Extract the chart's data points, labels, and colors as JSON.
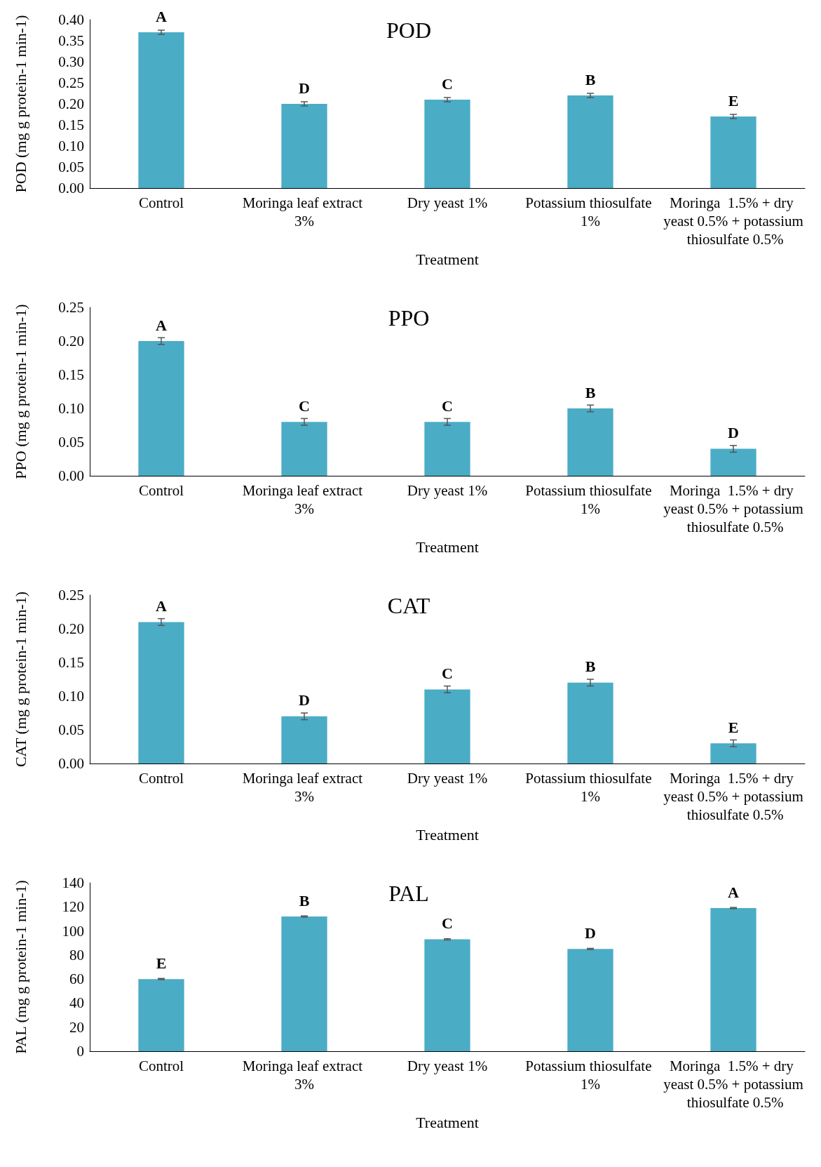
{
  "chart_data": [
    {
      "type": "bar",
      "title": "POD",
      "xlabel": "Treatment",
      "ylabel": "POD (mg g protein-1 min-1)",
      "categories": [
        "Control",
        "Moringa leaf extract 3%",
        "Dry yeast 1%",
        "Potassium thiosulfate 1%",
        "Moringa  1.5% + dry yeast 0.5% + potassium thiosulfate 0.5%"
      ],
      "values": [
        0.37,
        0.2,
        0.21,
        0.22,
        0.17
      ],
      "errors": [
        0.005,
        0.005,
        0.005,
        0.005,
        0.005
      ],
      "value_labels": [
        "A",
        "D",
        "C",
        "B",
        "E"
      ],
      "color": "#4bacc6",
      "ylim": [
        0,
        0.4
      ],
      "yticks": [
        {
          "value": 0,
          "label": "0.00"
        },
        {
          "value": 0.05,
          "label": "0.05"
        },
        {
          "value": 0.1,
          "label": "0.10"
        },
        {
          "value": 0.15,
          "label": "0.15"
        },
        {
          "value": 0.2,
          "label": "0.20"
        },
        {
          "value": 0.25,
          "label": "0.25"
        },
        {
          "value": 0.3,
          "label": "0.30"
        },
        {
          "value": 0.35,
          "label": "0.35"
        },
        {
          "value": 0.4,
          "label": "0.40"
        }
      ],
      "grid": false
    },
    {
      "type": "bar",
      "title": "PPO",
      "xlabel": "Treatment",
      "ylabel": "PPO (mg g protein-1 min-1)",
      "categories": [
        "Control",
        "Moringa leaf extract 3%",
        "Dry yeast 1%",
        "Potassium thiosulfate 1%",
        "Moringa  1.5% + dry yeast 0.5% + potassium thiosulfate 0.5%"
      ],
      "values": [
        0.2,
        0.08,
        0.08,
        0.1,
        0.04
      ],
      "errors": [
        0.005,
        0.005,
        0.005,
        0.005,
        0.005
      ],
      "value_labels": [
        "A",
        "C",
        "C",
        "B",
        "D"
      ],
      "color": "#4bacc6",
      "ylim": [
        0,
        0.25
      ],
      "yticks": [
        {
          "value": 0,
          "label": "0.00"
        },
        {
          "value": 0.05,
          "label": "0.05"
        },
        {
          "value": 0.1,
          "label": "0.10"
        },
        {
          "value": 0.15,
          "label": "0.15"
        },
        {
          "value": 0.2,
          "label": "0.20"
        },
        {
          "value": 0.25,
          "label": "0.25"
        }
      ],
      "grid": false
    },
    {
      "type": "bar",
      "title": "CAT",
      "xlabel": "Treatment",
      "ylabel": "CAT (mg g protein-1 min-1)",
      "categories": [
        "Control",
        "Moringa leaf extract 3%",
        "Dry yeast 1%",
        "Potassium thiosulfate 1%",
        "Moringa  1.5% + dry yeast 0.5% + potassium thiosulfate 0.5%"
      ],
      "values": [
        0.21,
        0.07,
        0.11,
        0.12,
        0.03
      ],
      "errors": [
        0.005,
        0.005,
        0.005,
        0.005,
        0.005
      ],
      "value_labels": [
        "A",
        "D",
        "C",
        "B",
        "E"
      ],
      "color": "#4bacc6",
      "ylim": [
        0,
        0.25
      ],
      "yticks": [
        {
          "value": 0,
          "label": "0.00"
        },
        {
          "value": 0.05,
          "label": "0.05"
        },
        {
          "value": 0.1,
          "label": "0.10"
        },
        {
          "value": 0.15,
          "label": "0.15"
        },
        {
          "value": 0.2,
          "label": "0.20"
        },
        {
          "value": 0.25,
          "label": "0.25"
        }
      ],
      "grid": false
    },
    {
      "type": "bar",
      "title": "PAL",
      "xlabel": "Treatment",
      "ylabel": "PAL (mg g protein-1 min-1)",
      "categories": [
        "Control",
        "Moringa leaf extract 3%",
        "Dry yeast 1%",
        "Potassium thiosulfate 1%",
        "Moringa  1.5% + dry yeast 0.5% + potassium thiosulfate 0.5%"
      ],
      "values": [
        60,
        112,
        93,
        85,
        119
      ],
      "errors": [
        0.5,
        0.5,
        0.5,
        0.5,
        0.5
      ],
      "value_labels": [
        "E",
        "B",
        "C",
        "D",
        "A"
      ],
      "color": "#4bacc6",
      "ylim": [
        0,
        140
      ],
      "yticks": [
        0,
        20,
        40,
        60,
        80,
        100,
        120,
        140
      ],
      "grid": false
    }
  ]
}
